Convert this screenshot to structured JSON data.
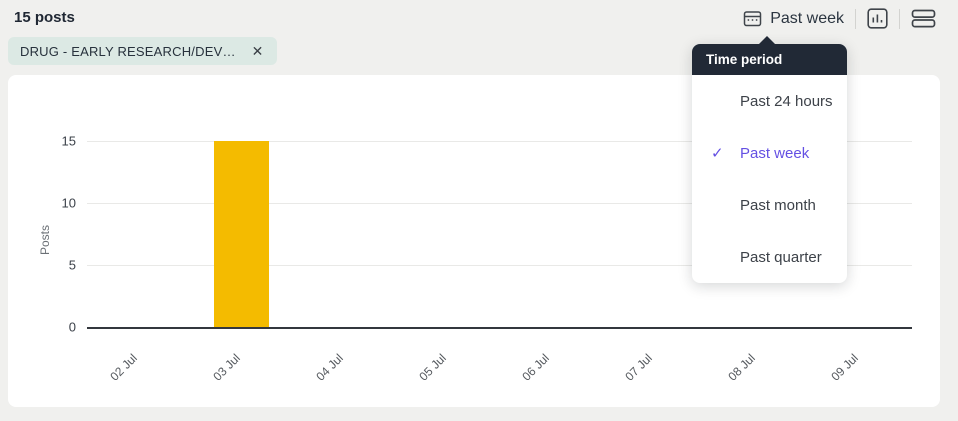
{
  "header": {
    "posts_count": "15 posts"
  },
  "filter_chip": {
    "label": "DRUG - EARLY RESEARCH/DEV…",
    "close_icon": "✕"
  },
  "toolbar": {
    "time_range_label": "Past week"
  },
  "time_period_menu": {
    "title": "Time period",
    "check_icon": "✓",
    "options": [
      {
        "label": "Past 24 hours",
        "selected": false
      },
      {
        "label": "Past week",
        "selected": true
      },
      {
        "label": "Past month",
        "selected": false
      },
      {
        "label": "Past quarter",
        "selected": false
      }
    ]
  },
  "chart_data": {
    "type": "bar",
    "title": "",
    "categories": [
      "02 Jul",
      "03 Jul",
      "04 Jul",
      "05 Jul",
      "06 Jul",
      "07 Jul",
      "08 Jul",
      "09 Jul"
    ],
    "values": [
      0,
      15,
      0,
      0,
      0,
      0,
      0,
      0
    ],
    "xlabel": "",
    "ylabel": "Posts",
    "yticks": [
      0,
      5,
      10,
      15
    ],
    "ylim": [
      0,
      15
    ],
    "grid": true,
    "legend": "none",
    "bar_color": "#f4bb00"
  },
  "colors": {
    "accent_purple": "#6450e3",
    "bar_yellow": "#f4bb00",
    "chip_bg": "#dce9e4",
    "menu_header_bg": "#212936",
    "page_bg": "#f0f0ee"
  }
}
